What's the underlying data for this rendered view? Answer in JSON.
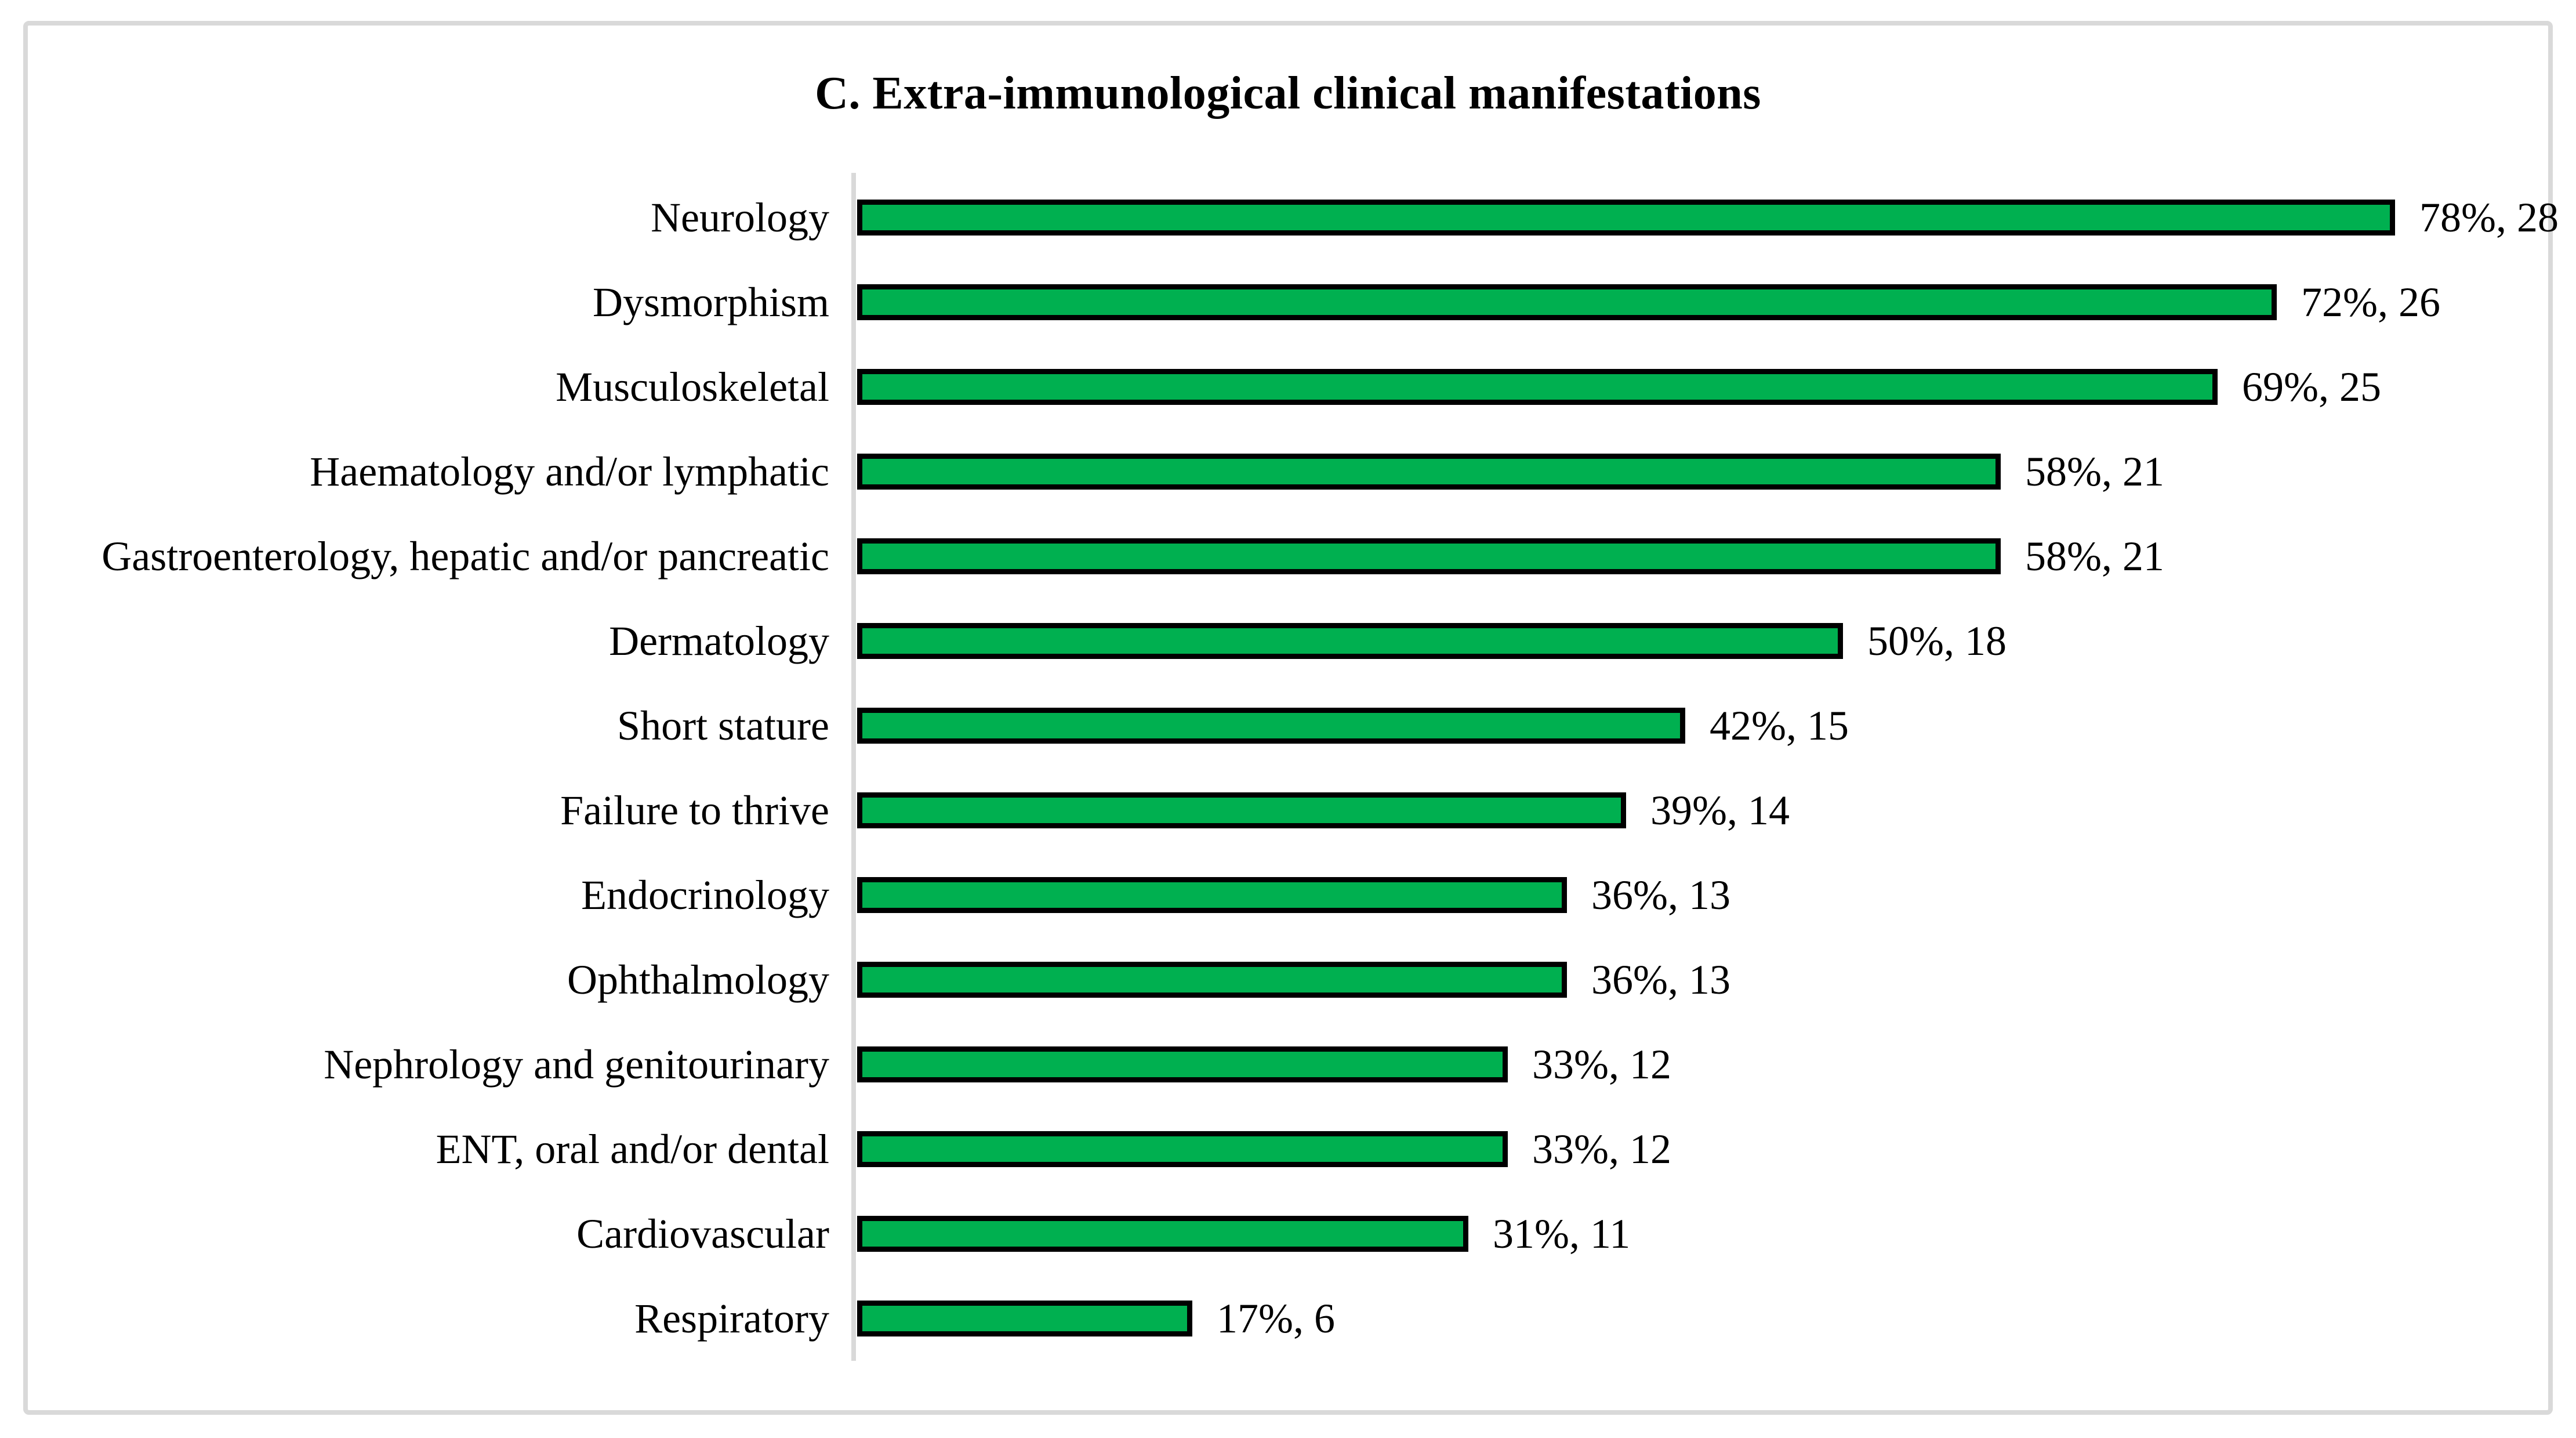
{
  "chart_data": {
    "type": "bar",
    "orientation": "horizontal",
    "title": "C. Extra-immunological clinical manifestations",
    "xlabel": "",
    "ylabel": "",
    "xlim": [
      0,
      100
    ],
    "grid": false,
    "legend": null,
    "data_label_format": "pct%, count",
    "colors": {
      "bar_fill": "#00B050",
      "bar_border": "#000000",
      "axis_line": "#D9D9D9",
      "frame_border": "#D9D9D9",
      "text": "#000000",
      "background": "#FFFFFF"
    },
    "categories": [
      "Neurology",
      "Dysmorphism",
      "Musculoskeletal",
      "Haematology and/or lymphatic",
      "Gastroenterology, hepatic and/or pancreatic",
      "Dermatology",
      "Short stature",
      "Failure to thrive",
      "Endocrinology",
      "Ophthalmology",
      "Nephrology and genitourinary",
      "ENT, oral and/or dental",
      "Cardiovascular",
      "Respiratory"
    ],
    "values_percent": [
      78,
      72,
      69,
      58,
      58,
      50,
      42,
      39,
      36,
      36,
      33,
      33,
      31,
      17
    ],
    "counts": [
      28,
      26,
      25,
      21,
      21,
      18,
      15,
      14,
      13,
      13,
      12,
      12,
      11,
      6
    ],
    "rows": [
      {
        "category": "Neurology",
        "pct": 78,
        "count": 28,
        "label": "78%, 28"
      },
      {
        "category": "Dysmorphism",
        "pct": 72,
        "count": 26,
        "label": "72%, 26"
      },
      {
        "category": "Musculoskeletal",
        "pct": 69,
        "count": 25,
        "label": "69%, 25"
      },
      {
        "category": "Haematology and/or lymphatic",
        "pct": 58,
        "count": 21,
        "label": "58%, 21"
      },
      {
        "category": "Gastroenterology, hepatic and/or pancreatic",
        "pct": 58,
        "count": 21,
        "label": "58%, 21"
      },
      {
        "category": "Dermatology",
        "pct": 50,
        "count": 18,
        "label": "50%, 18"
      },
      {
        "category": "Short stature",
        "pct": 42,
        "count": 15,
        "label": "42%, 15"
      },
      {
        "category": "Failure to thrive",
        "pct": 39,
        "count": 14,
        "label": "39%, 14"
      },
      {
        "category": "Endocrinology",
        "pct": 36,
        "count": 13,
        "label": "36%, 13"
      },
      {
        "category": "Ophthalmology",
        "pct": 36,
        "count": 13,
        "label": "36%, 13"
      },
      {
        "category": "Nephrology and genitourinary",
        "pct": 33,
        "count": 12,
        "label": "33%, 12"
      },
      {
        "category": "ENT, oral and/or dental",
        "pct": 33,
        "count": 12,
        "label": "33%, 12"
      },
      {
        "category": "Cardiovascular",
        "pct": 31,
        "count": 11,
        "label": "31%, 11"
      },
      {
        "category": "Respiratory",
        "pct": 17,
        "count": 6,
        "label": "17%, 6"
      }
    ]
  }
}
